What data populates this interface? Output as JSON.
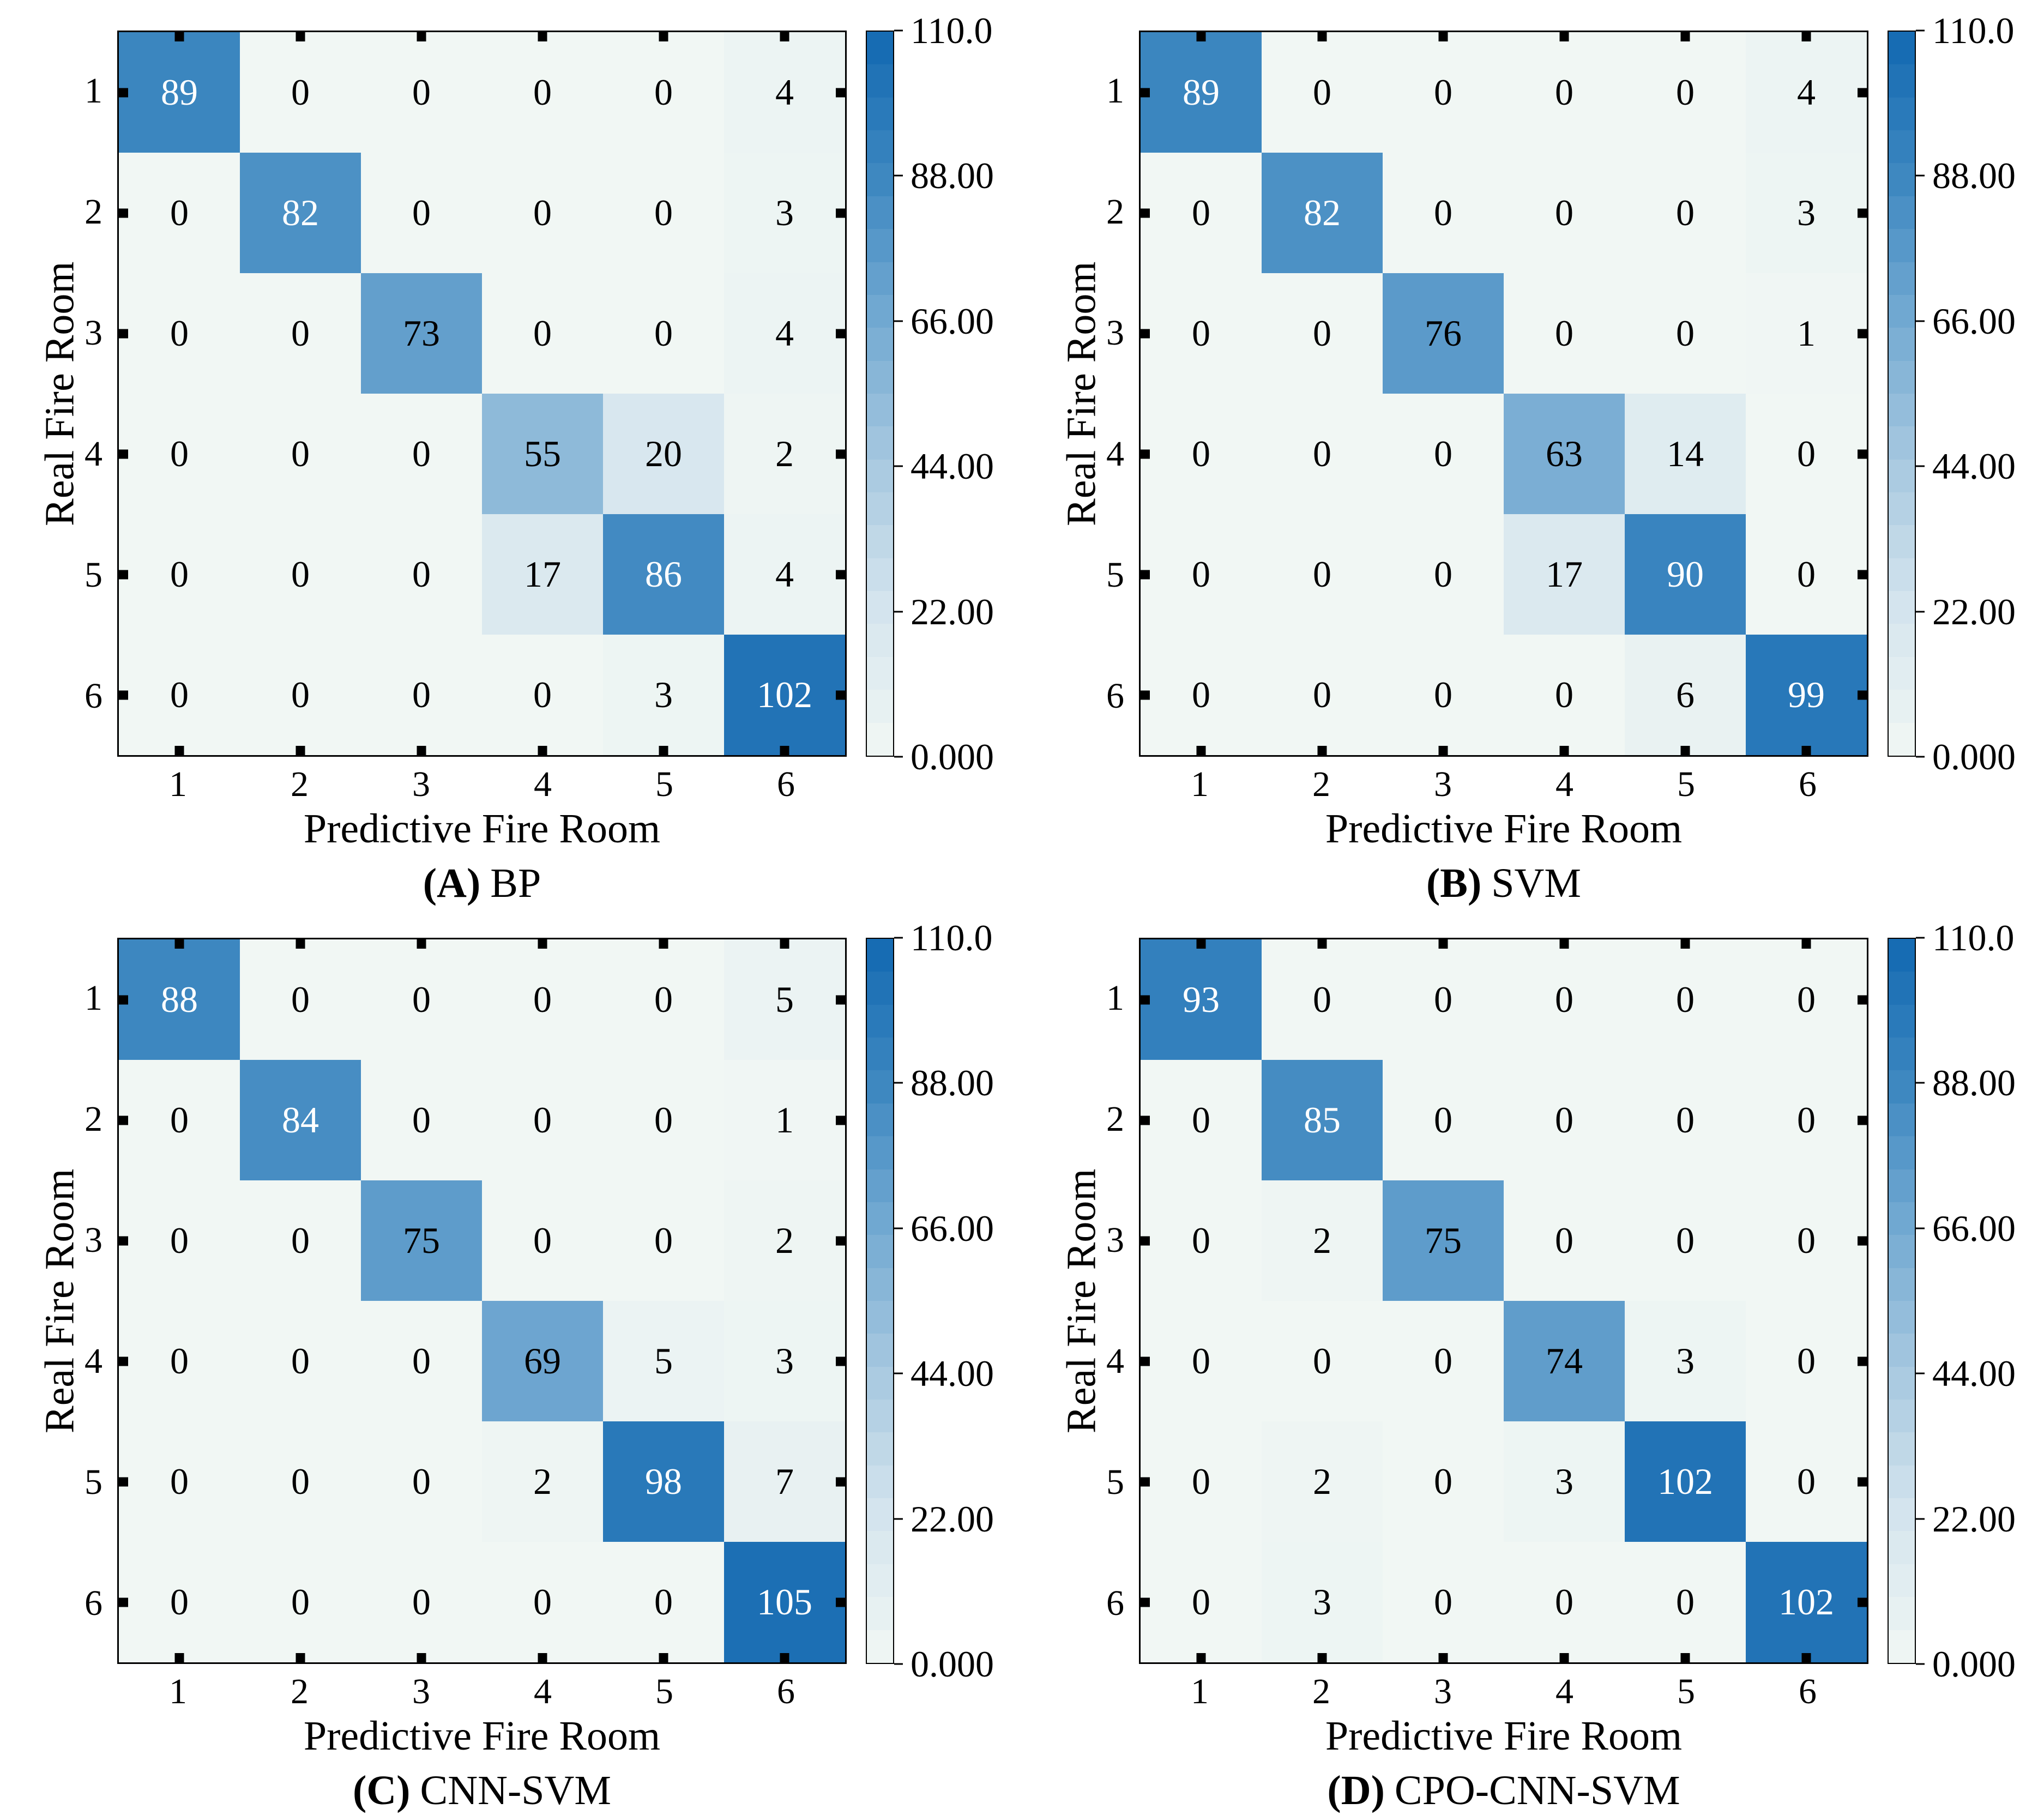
{
  "figure": {
    "xlabel": "Predictive Fire Room",
    "ylabel": "Real Fire Room",
    "xticks": [
      "1",
      "2",
      "3",
      "4",
      "5",
      "6"
    ],
    "yticks": [
      "1",
      "2",
      "3",
      "4",
      "5",
      "6"
    ],
    "colorbar": {
      "tick_labels": [
        "110.0",
        "88.00",
        "66.00",
        "44.00",
        "22.00",
        "0.000"
      ],
      "min": 0,
      "max": 110,
      "scale_stops": [
        {
          "value": 0,
          "color": "#f1f7f4"
        },
        {
          "value": 22,
          "color": "#d5e5ee"
        },
        {
          "value": 44,
          "color": "#a8c9e0"
        },
        {
          "value": 66,
          "color": "#74aad2"
        },
        {
          "value": 88,
          "color": "#3d87c0"
        },
        {
          "value": 110,
          "color": "#1268b1"
        }
      ]
    },
    "colors": {
      "cell_text_dark": "#000000",
      "cell_text_light": "#ffffff",
      "axis": "#000000",
      "background": "#ffffff"
    }
  },
  "chart_data": [
    {
      "type": "heatmap",
      "title": "(A) BP",
      "caption_letter": "(A)",
      "caption_name": "BP",
      "xlabel": "Predictive Fire Room",
      "ylabel": "Real Fire Room",
      "x_categories": [
        "1",
        "2",
        "3",
        "4",
        "5",
        "6"
      ],
      "y_categories": [
        "1",
        "2",
        "3",
        "4",
        "5",
        "6"
      ],
      "values": [
        [
          89,
          0,
          0,
          0,
          0,
          4
        ],
        [
          0,
          82,
          0,
          0,
          0,
          3
        ],
        [
          0,
          0,
          73,
          0,
          0,
          4
        ],
        [
          0,
          0,
          0,
          55,
          20,
          2
        ],
        [
          0,
          0,
          0,
          17,
          86,
          4
        ],
        [
          0,
          0,
          0,
          0,
          3,
          102
        ]
      ],
      "colorbar_range": [
        0,
        110
      ]
    },
    {
      "type": "heatmap",
      "title": "(B) SVM",
      "caption_letter": "(B)",
      "caption_name": "SVM",
      "xlabel": "Predictive Fire Room",
      "ylabel": "Real Fire Room",
      "x_categories": [
        "1",
        "2",
        "3",
        "4",
        "5",
        "6"
      ],
      "y_categories": [
        "1",
        "2",
        "3",
        "4",
        "5",
        "6"
      ],
      "values": [
        [
          89,
          0,
          0,
          0,
          0,
          4
        ],
        [
          0,
          82,
          0,
          0,
          0,
          3
        ],
        [
          0,
          0,
          76,
          0,
          0,
          1
        ],
        [
          0,
          0,
          0,
          63,
          14,
          0
        ],
        [
          0,
          0,
          0,
          17,
          90,
          0
        ],
        [
          0,
          0,
          0,
          0,
          6,
          99
        ]
      ],
      "colorbar_range": [
        0,
        110
      ]
    },
    {
      "type": "heatmap",
      "title": "(C) CNN-SVM",
      "caption_letter": "(C)",
      "caption_name": "CNN-SVM",
      "xlabel": "Predictive Fire Room",
      "ylabel": "Real Fire Room",
      "x_categories": [
        "1",
        "2",
        "3",
        "4",
        "5",
        "6"
      ],
      "y_categories": [
        "1",
        "2",
        "3",
        "4",
        "5",
        "6"
      ],
      "values": [
        [
          88,
          0,
          0,
          0,
          0,
          5
        ],
        [
          0,
          84,
          0,
          0,
          0,
          1
        ],
        [
          0,
          0,
          75,
          0,
          0,
          2
        ],
        [
          0,
          0,
          0,
          69,
          5,
          3
        ],
        [
          0,
          0,
          0,
          2,
          98,
          7
        ],
        [
          0,
          0,
          0,
          0,
          0,
          105
        ]
      ],
      "colorbar_range": [
        0,
        110
      ]
    },
    {
      "type": "heatmap",
      "title": "(D) CPO-CNN-SVM",
      "caption_letter": "(D)",
      "caption_name": "CPO-CNN-SVM",
      "xlabel": "Predictive Fire Room",
      "ylabel": "Real Fire Room",
      "x_categories": [
        "1",
        "2",
        "3",
        "4",
        "5",
        "6"
      ],
      "y_categories": [
        "1",
        "2",
        "3",
        "4",
        "5",
        "6"
      ],
      "values": [
        [
          93,
          0,
          0,
          0,
          0,
          0
        ],
        [
          0,
          85,
          0,
          0,
          0,
          0
        ],
        [
          0,
          2,
          75,
          0,
          0,
          0
        ],
        [
          0,
          0,
          0,
          74,
          3,
          0
        ],
        [
          0,
          2,
          0,
          3,
          102,
          0
        ],
        [
          0,
          3,
          0,
          0,
          0,
          102
        ]
      ],
      "colorbar_range": [
        0,
        110
      ]
    }
  ]
}
